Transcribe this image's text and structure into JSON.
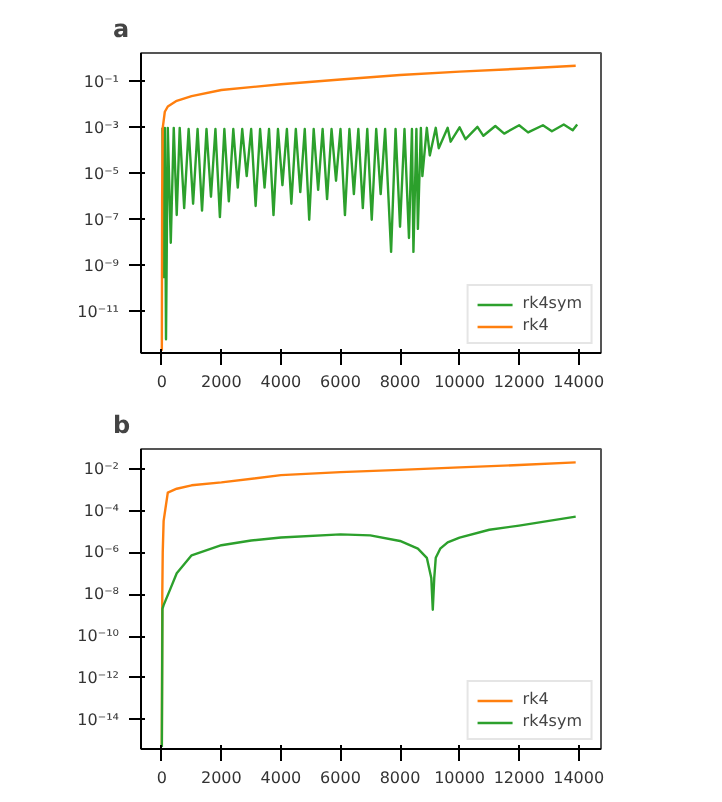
{
  "chart_data": [
    {
      "type": "line",
      "title": "a",
      "log": true,
      "legend": "bottom right",
      "xlim": [
        -700,
        14750
      ],
      "xticks": [
        0,
        2000,
        4000,
        6000,
        8000,
        10000,
        12000,
        14000
      ],
      "ylim": [
        1.6e-13,
        1.8
      ],
      "yticks": [
        {
          "value": 1e-11,
          "label": "10⁻¹¹"
        },
        {
          "value": 1e-09,
          "label": "10⁻⁹"
        },
        {
          "value": 1e-07,
          "label": "10⁻⁷"
        },
        {
          "value": 1e-05,
          "label": "10⁻⁵"
        },
        {
          "value": 0.001,
          "label": "10⁻³"
        },
        {
          "value": 0.1,
          "label": "10⁻¹"
        }
      ],
      "series": [
        {
          "name": "rk4sym",
          "color": "#2ca02c",
          "x": [
            20,
            60,
            100,
            140,
            200,
            300,
            400,
            500,
            600,
            750,
            900,
            1050,
            1200,
            1350,
            1500,
            1650,
            1800,
            1950,
            2100,
            2250,
            2400,
            2550,
            2700,
            2850,
            3000,
            3150,
            3300,
            3450,
            3600,
            3750,
            3900,
            4050,
            4200,
            4350,
            4500,
            4650,
            4800,
            4950,
            5100,
            5250,
            5400,
            5550,
            5700,
            5850,
            6000,
            6150,
            6300,
            6450,
            6600,
            6750,
            6900,
            7050,
            7200,
            7350,
            7500,
            7700,
            7850,
            8000,
            8150,
            8300,
            8400,
            8450,
            8550,
            8600,
            8700,
            8750,
            8900,
            9000,
            9200,
            9300,
            9600,
            9700,
            10000,
            10200,
            10600,
            10800,
            11200,
            11500,
            12000,
            12300,
            12800,
            13100,
            13500,
            13800,
            13950
          ],
          "values": [
            0.001,
            3.2e-10,
            0.001,
            6.3e-13,
            0.001,
            1e-08,
            0.001,
            1.6e-07,
            0.001,
            3.2e-07,
            0.00089,
            5e-07,
            0.00089,
            2.5e-07,
            0.00089,
            1e-06,
            0.00089,
            1.3e-07,
            0.00089,
            6.3e-07,
            0.00089,
            2.5e-06,
            0.00089,
            7.9e-06,
            0.00089,
            4e-07,
            0.00089,
            2.5e-06,
            0.00089,
            1.6e-07,
            0.00089,
            3.2e-06,
            0.00089,
            5e-07,
            0.00089,
            1.6e-06,
            0.00089,
            1e-07,
            0.00089,
            2e-06,
            0.00089,
            7.9e-07,
            0.00089,
            5e-06,
            0.00089,
            1.6e-07,
            0.00089,
            1.3e-06,
            0.00089,
            3.2e-07,
            0.00089,
            1e-07,
            0.00089,
            1.3e-06,
            0.00089,
            4e-09,
            0.00089,
            5e-08,
            0.00089,
            1.6e-08,
            0.00089,
            4e-09,
            0.00089,
            4e-08,
            0.001,
            7.9e-06,
            0.001,
            6.3e-05,
            0.001,
            0.00013,
            0.001,
            0.00025,
            0.00105,
            0.00032,
            0.0011,
            0.00045,
            0.0012,
            0.00056,
            0.0013,
            0.00063,
            0.0013,
            0.00071,
            0.0014,
            0.00079,
            0.0014
          ]
        },
        {
          "name": "rk4",
          "color": "#ff7f0e",
          "x": [
            0,
            10,
            30,
            100,
            200,
            500,
            1000,
            2000,
            4000,
            6000,
            8000,
            10000,
            12000,
            13900
          ],
          "values": [
            2e-13,
            1e-06,
            0.001,
            0.005,
            0.0085,
            0.015,
            0.024,
            0.044,
            0.079,
            0.126,
            0.2,
            0.28,
            0.37,
            0.5
          ]
        }
      ]
    },
    {
      "type": "line",
      "title": "b",
      "log": true,
      "legend": "bottom right",
      "xlim": [
        -700,
        14750
      ],
      "xticks": [
        0,
        2000,
        4000,
        6000,
        8000,
        10000,
        12000,
        14000
      ],
      "ylim": [
        4e-16,
        0.087
      ],
      "yticks": [
        {
          "value": 1e-14,
          "label": "10⁻¹⁴"
        },
        {
          "value": 1e-12,
          "label": "10⁻¹²"
        },
        {
          "value": 1e-10,
          "label": "10⁻¹⁰"
        },
        {
          "value": 1e-08,
          "label": "10⁻⁸"
        },
        {
          "value": 1e-06,
          "label": "10⁻⁶"
        },
        {
          "value": 0.0001,
          "label": "10⁻⁴"
        },
        {
          "value": 0.01,
          "label": "10⁻²"
        }
      ],
      "series": [
        {
          "name": "rk4",
          "color": "#ff7f0e",
          "x": [
            0,
            15,
            30,
            60,
            200,
            500,
            1000,
            2000,
            4000,
            6000,
            8000,
            10000,
            12000,
            13900
          ],
          "values": [
            5e-16,
            1e-08,
            1e-06,
            3.2e-05,
            0.00072,
            0.0011,
            0.0016,
            0.0022,
            0.0049,
            0.0068,
            0.0087,
            0.0115,
            0.015,
            0.02
          ]
        },
        {
          "name": "rk4sym",
          "color": "#2ca02c",
          "x": [
            0,
            20,
            60,
            300,
            500,
            1000,
            2000,
            3000,
            4000,
            6000,
            7000,
            8000,
            8600,
            8900,
            9050,
            9100,
            9150,
            9200,
            9350,
            9600,
            10000,
            11000,
            12000,
            13000,
            13900
          ],
          "values": [
            5e-16,
            2e-09,
            3e-09,
            2e-08,
            1e-07,
            7.2e-07,
            2.2e-06,
            3.7e-06,
            5.1e-06,
            7.2e-06,
            6.5e-06,
            3.5e-06,
            1.5e-06,
            5.5e-07,
            6e-08,
            1.8e-09,
            6e-08,
            5.5e-07,
            1.5e-06,
            3e-06,
            5.1e-06,
            1.2e-05,
            1.9e-05,
            3.2e-05,
            5.1e-05
          ]
        }
      ]
    }
  ]
}
